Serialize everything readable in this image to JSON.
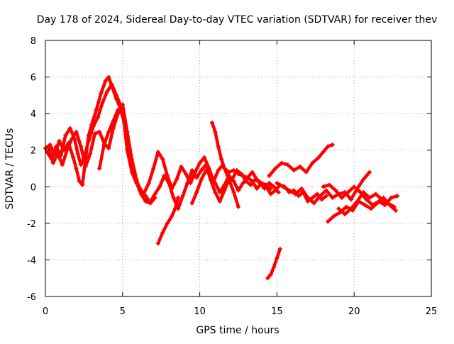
{
  "chart_data": {
    "type": "scatter",
    "title": "Day 178 of 2024, Sidereal Day-to-day VTEC variation (SDTVAR) for receiver thev",
    "xlabel": "GPS time / hours",
    "ylabel": "SDTVAR / TECUs",
    "xlim": [
      0,
      25
    ],
    "ylim": [
      -6,
      8
    ],
    "xticks": [
      0,
      5,
      10,
      15,
      20,
      25
    ],
    "yticks": [
      -6,
      -4,
      -2,
      0,
      2,
      4,
      6,
      8
    ],
    "xtick_labels": [
      "0",
      "5",
      "10",
      "15",
      "20",
      "25"
    ],
    "ytick_labels": [
      "-6",
      "-4",
      "-2",
      "0",
      "2",
      "4",
      "6",
      "8"
    ],
    "grid": true,
    "marker": "+",
    "color": "#ff0000",
    "series": [
      {
        "name": "trace-1",
        "x": [
          0.0,
          0.3,
          0.6,
          0.9,
          1.2,
          1.5,
          1.8,
          2.0,
          2.2,
          2.4,
          2.6,
          2.8,
          3.0,
          3.3,
          3.6,
          3.9,
          4.1,
          4.3,
          4.6,
          4.9,
          5.1,
          5.3,
          5.6,
          5.9,
          6.2
        ],
        "y": [
          2.1,
          2.3,
          1.8,
          2.5,
          2.0,
          2.4,
          1.6,
          1.0,
          0.3,
          0.1,
          1.5,
          2.8,
          3.4,
          4.2,
          5.1,
          5.8,
          6.0,
          5.5,
          4.8,
          4.2,
          3.5,
          2.0,
          0.8,
          0.2,
          -0.3
        ]
      },
      {
        "name": "trace-2",
        "x": [
          0.1,
          0.4,
          0.7,
          1.0,
          1.3,
          1.6,
          1.9,
          2.1,
          2.3,
          2.5,
          2.8,
          3.1,
          3.4,
          3.7,
          4.0,
          4.3,
          4.6,
          4.9,
          5.2,
          5.5,
          5.8,
          6.1,
          6.4
        ],
        "y": [
          1.9,
          1.5,
          2.2,
          1.7,
          2.8,
          3.2,
          2.6,
          1.8,
          1.2,
          1.6,
          2.5,
          3.3,
          3.8,
          4.6,
          5.2,
          5.6,
          5.0,
          4.4,
          3.2,
          1.6,
          0.5,
          -0.2,
          -0.6
        ]
      },
      {
        "name": "trace-3",
        "x": [
          0.2,
          0.5,
          0.8,
          1.1,
          1.4,
          1.7,
          2.0,
          2.3,
          2.6,
          2.9,
          3.2,
          3.5,
          3.8,
          4.1,
          4.4,
          4.7,
          5.0,
          5.3,
          5.6,
          5.9,
          6.2,
          6.5,
          6.8,
          7.1
        ],
        "y": [
          2.2,
          1.3,
          1.8,
          1.2,
          2.0,
          2.6,
          3.0,
          2.2,
          1.1,
          1.8,
          2.9,
          3.0,
          2.4,
          2.1,
          3.2,
          4.0,
          4.5,
          3.0,
          1.5,
          0.4,
          -0.4,
          -0.8,
          -0.9,
          -0.6
        ]
      },
      {
        "name": "trace-4",
        "x": [
          3.5,
          3.8,
          4.1,
          4.4,
          4.7,
          5.0,
          5.3,
          5.6,
          5.9,
          6.2,
          6.5,
          6.8
        ],
        "y": [
          1.0,
          2.3,
          3.0,
          3.6,
          4.2,
          4.0,
          2.8,
          1.2,
          0.3,
          -0.2,
          -0.5,
          -0.9
        ]
      },
      {
        "name": "trace-5",
        "x": [
          6.3,
          6.7,
          7.0,
          7.3,
          7.6,
          7.9,
          8.2,
          8.5,
          8.8,
          9.1,
          9.4,
          9.7,
          10.0,
          10.3,
          10.6,
          10.9,
          11.2,
          11.5,
          11.8,
          12.1,
          12.4,
          12.7,
          13.0,
          13.3,
          13.6,
          13.9,
          14.2,
          14.5,
          14.8,
          15.1
        ],
        "y": [
          -0.5,
          0.2,
          1.0,
          1.9,
          1.5,
          0.6,
          -0.1,
          0.4,
          1.1,
          0.7,
          0.2,
          0.8,
          1.3,
          1.6,
          1.0,
          0.3,
          0.9,
          1.2,
          0.6,
          0.4,
          0.9,
          0.7,
          0.3,
          0.1,
          0.4,
          0.2,
          -0.1,
          0.2,
          0.0,
          -0.3
        ]
      },
      {
        "name": "trace-6",
        "x": [
          6.8,
          7.1,
          7.4,
          7.7,
          8.0,
          8.3,
          8.6,
          8.9,
          9.2,
          9.5,
          9.8,
          10.1,
          10.4,
          10.7,
          11.0,
          11.3,
          11.6,
          11.9,
          12.2,
          12.5
        ],
        "y": [
          -0.8,
          -0.4,
          0.0,
          0.6,
          0.2,
          -0.6,
          -1.2,
          -0.5,
          0.2,
          0.9,
          0.5,
          0.9,
          1.2,
          0.4,
          -0.3,
          -0.8,
          -0.2,
          0.4,
          -0.3,
          -1.1
        ]
      },
      {
        "name": "trace-7",
        "x": [
          7.3,
          7.6,
          7.9,
          8.2,
          8.4,
          8.6
        ],
        "y": [
          -3.1,
          -2.5,
          -2.0,
          -1.6,
          -1.2,
          -0.6
        ]
      },
      {
        "name": "trace-8",
        "x": [
          9.5,
          9.8,
          10.1,
          10.4,
          10.7,
          11.0,
          11.3,
          11.6,
          11.9,
          12.2,
          12.5,
          12.8,
          13.1,
          13.4,
          13.7,
          14.0,
          14.3,
          14.6,
          14.9,
          15.2,
          15.5,
          15.8,
          16.1,
          16.4,
          16.7,
          17.0,
          17.3,
          17.6,
          17.9,
          18.2
        ],
        "y": [
          -0.9,
          -0.3,
          0.4,
          0.9,
          0.6,
          0.2,
          -0.3,
          0.1,
          0.6,
          0.3,
          -0.2,
          0.2,
          0.5,
          0.3,
          -0.1,
          0.2,
          0.0,
          -0.4,
          -0.2,
          0.1,
          0.0,
          -0.3,
          -0.2,
          -0.5,
          -0.3,
          -0.8,
          -0.6,
          -0.4,
          -0.7,
          -0.5
        ]
      },
      {
        "name": "trace-9",
        "x": [
          10.8,
          11.0,
          11.2,
          11.4,
          11.6,
          11.9,
          12.2,
          12.5,
          12.8,
          13.1,
          13.4,
          13.7,
          14.0,
          14.3,
          14.6
        ],
        "y": [
          3.5,
          3.0,
          2.2,
          1.5,
          1.0,
          0.8,
          0.9,
          0.7,
          0.6,
          0.5,
          0.8,
          0.4,
          0.2,
          0.1,
          -0.1
        ]
      },
      {
        "name": "trace-10",
        "x": [
          14.4,
          14.6,
          14.8,
          15.0,
          15.2
        ],
        "y": [
          -5.0,
          -4.8,
          -4.4,
          -3.9,
          -3.4
        ]
      },
      {
        "name": "trace-11",
        "x": [
          14.5,
          14.9,
          15.3,
          15.7,
          16.1,
          16.5,
          16.9,
          17.3,
          17.7,
          18.0,
          18.3,
          18.6
        ],
        "y": [
          0.6,
          1.0,
          1.3,
          1.2,
          0.9,
          1.1,
          0.8,
          1.3,
          1.6,
          1.9,
          2.2,
          2.3
        ]
      },
      {
        "name": "trace-12",
        "x": [
          15.0,
          15.4,
          15.8,
          16.2,
          16.6,
          17.0,
          17.4,
          17.8,
          18.2,
          18.6,
          19.0,
          19.4,
          19.8,
          20.2,
          20.6,
          21.0
        ],
        "y": [
          0.2,
          0.0,
          -0.2,
          -0.4,
          -0.1,
          -0.6,
          -0.9,
          -0.5,
          -0.2,
          -0.6,
          -0.4,
          -0.3,
          -0.7,
          -0.1,
          0.4,
          0.8
        ]
      },
      {
        "name": "trace-13",
        "x": [
          18.0,
          18.4,
          18.8,
          19.2,
          19.6,
          20.0,
          20.4,
          20.8,
          21.2,
          21.6,
          22.0,
          22.4,
          22.8
        ],
        "y": [
          0.0,
          0.1,
          -0.2,
          -0.6,
          -0.3,
          0.0,
          -0.3,
          -0.7,
          -1.0,
          -0.8,
          -1.0,
          -0.6,
          -0.5
        ]
      },
      {
        "name": "trace-14",
        "x": [
          18.3,
          18.7,
          19.1,
          19.5,
          19.9,
          20.3,
          20.7,
          21.1,
          21.5,
          21.9,
          22.3,
          22.7
        ],
        "y": [
          -1.9,
          -1.6,
          -1.4,
          -1.1,
          -1.3,
          -0.8,
          -1.0,
          -1.2,
          -0.9,
          -0.6,
          -1.0,
          -1.3
        ]
      },
      {
        "name": "trace-15",
        "x": [
          19.0,
          19.4,
          19.8,
          20.2,
          20.6,
          21.0,
          21.4,
          21.8,
          22.2,
          22.6
        ],
        "y": [
          -1.2,
          -1.5,
          -1.2,
          -0.8,
          -0.3,
          -0.6,
          -0.4,
          -0.7,
          -0.9,
          -1.1
        ]
      }
    ]
  }
}
